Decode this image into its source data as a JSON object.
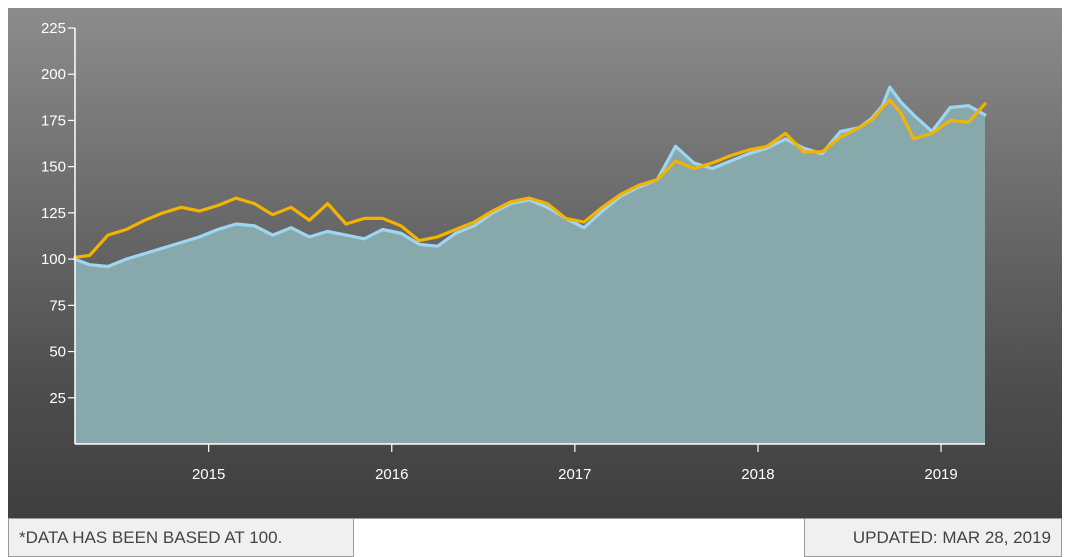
{
  "footer": {
    "note": "*DATA HAS BEEN BASED AT 100.",
    "updated": "UPDATED: MAR 28, 2019"
  },
  "colors": {
    "area_fill": "#88a9ab",
    "series_blue": "#9ed6f2",
    "series_gold": "#f2b400",
    "axis": "#ffffff"
  },
  "chart_data": {
    "type": "line",
    "ylim": [
      0,
      225
    ],
    "xlim": [
      2014.27,
      2019.24
    ],
    "yticks": [
      25,
      50,
      75,
      100,
      125,
      150,
      175,
      200,
      225
    ],
    "xticks": [
      2015,
      2016,
      2017,
      2018,
      2019
    ],
    "grid": false,
    "series": [
      {
        "color": "#9ed6f2",
        "x": [
          2014.27,
          2014.35,
          2014.45,
          2014.55,
          2014.65,
          2014.75,
          2014.85,
          2014.95,
          2015.05,
          2015.15,
          2015.25,
          2015.35,
          2015.45,
          2015.55,
          2015.65,
          2015.75,
          2015.85,
          2015.95,
          2016.05,
          2016.15,
          2016.25,
          2016.35,
          2016.45,
          2016.55,
          2016.65,
          2016.75,
          2016.85,
          2016.95,
          2017.05,
          2017.15,
          2017.25,
          2017.35,
          2017.45,
          2017.55,
          2017.65,
          2017.75,
          2017.85,
          2017.95,
          2018.05,
          2018.15,
          2018.25,
          2018.35,
          2018.45,
          2018.55,
          2018.62,
          2018.68,
          2018.72,
          2018.78,
          2018.85,
          2018.95,
          2019.05,
          2019.15,
          2019.24
        ],
        "values": [
          100,
          97,
          96,
          100,
          103,
          106,
          109,
          112,
          116,
          119,
          118,
          113,
          117,
          112,
          115,
          113,
          111,
          116,
          114,
          108,
          107,
          114,
          118,
          125,
          130,
          132,
          128,
          122,
          117,
          126,
          134,
          139,
          143,
          161,
          152,
          149,
          153,
          157,
          160,
          165,
          160,
          157,
          169,
          171,
          176,
          183,
          193,
          185,
          178,
          169,
          182,
          183,
          178
        ]
      },
      {
        "color": "#f2b400",
        "x": [
          2014.27,
          2014.35,
          2014.45,
          2014.55,
          2014.65,
          2014.75,
          2014.85,
          2014.95,
          2015.05,
          2015.15,
          2015.25,
          2015.35,
          2015.45,
          2015.55,
          2015.65,
          2015.75,
          2015.85,
          2015.95,
          2016.05,
          2016.15,
          2016.25,
          2016.35,
          2016.45,
          2016.55,
          2016.65,
          2016.75,
          2016.85,
          2016.95,
          2017.05,
          2017.15,
          2017.25,
          2017.35,
          2017.45,
          2017.55,
          2017.65,
          2017.75,
          2017.85,
          2017.95,
          2018.05,
          2018.15,
          2018.25,
          2018.35,
          2018.45,
          2018.55,
          2018.62,
          2018.68,
          2018.72,
          2018.78,
          2018.85,
          2018.95,
          2019.05,
          2019.15,
          2019.24
        ],
        "values": [
          101,
          102,
          113,
          116,
          121,
          125,
          128,
          126,
          129,
          133,
          130,
          124,
          128,
          121,
          130,
          119,
          122,
          122,
          118,
          110,
          112,
          116,
          120,
          126,
          131,
          133,
          130,
          122,
          120,
          128,
          135,
          140,
          143,
          153,
          149,
          152,
          156,
          159,
          161,
          168,
          158,
          158,
          166,
          171,
          175,
          182,
          186,
          179,
          165,
          168,
          175,
          174,
          184
        ]
      }
    ]
  }
}
